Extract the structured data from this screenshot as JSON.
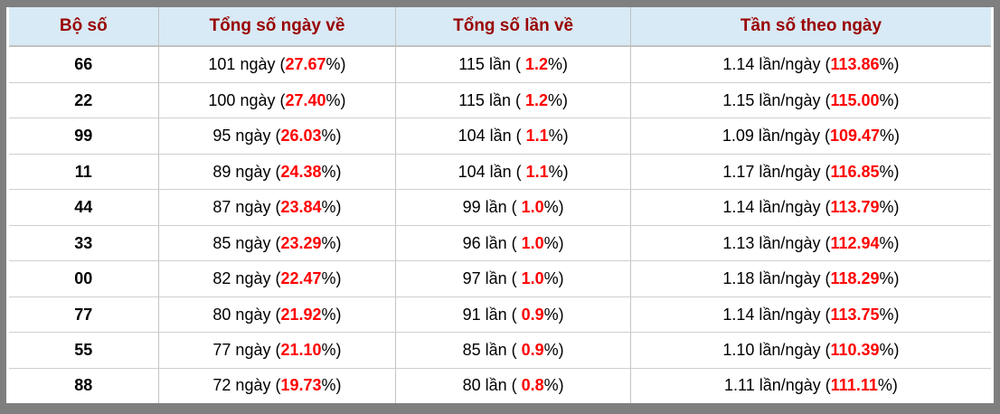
{
  "colors": {
    "frame": "#7f7f7f",
    "header_bg": "#d8eaf5",
    "header_text": "#990000",
    "body_text": "#000000",
    "highlight_red": "#ff0000",
    "grid_line": "#c3c3c3"
  },
  "table": {
    "headers": [
      "Bộ số",
      "Tổng số ngày về",
      "Tổng số lần về",
      "Tần số theo ngày"
    ],
    "rows": [
      {
        "num": "66",
        "days": {
          "pre": "101 ngày (",
          "red": "27.67",
          "suf": "%)"
        },
        "times": {
          "pre": "115 lần ( ",
          "red": "1.2",
          "suf": "%)"
        },
        "freq": {
          "pre": "1.14 lần/ngày (",
          "red": "113.86",
          "suf": "%)"
        }
      },
      {
        "num": "22",
        "days": {
          "pre": "100 ngày (",
          "red": "27.40",
          "suf": "%)"
        },
        "times": {
          "pre": "115 lần ( ",
          "red": "1.2",
          "suf": "%)"
        },
        "freq": {
          "pre": "1.15 lần/ngày (",
          "red": "115.00",
          "suf": "%)"
        }
      },
      {
        "num": "99",
        "days": {
          "pre": "95 ngày (",
          "red": "26.03",
          "suf": "%)"
        },
        "times": {
          "pre": "104 lần ( ",
          "red": "1.1",
          "suf": "%)"
        },
        "freq": {
          "pre": "1.09 lần/ngày (",
          "red": "109.47",
          "suf": "%)"
        }
      },
      {
        "num": "11",
        "days": {
          "pre": "89 ngày (",
          "red": "24.38",
          "suf": "%)"
        },
        "times": {
          "pre": "104 lần ( ",
          "red": "1.1",
          "suf": "%)"
        },
        "freq": {
          "pre": "1.17 lần/ngày (",
          "red": "116.85",
          "suf": "%)"
        }
      },
      {
        "num": "44",
        "days": {
          "pre": "87 ngày (",
          "red": "23.84",
          "suf": "%)"
        },
        "times": {
          "pre": "99 lần ( ",
          "red": "1.0",
          "suf": "%)"
        },
        "freq": {
          "pre": "1.14 lần/ngày (",
          "red": "113.79",
          "suf": "%)"
        }
      },
      {
        "num": "33",
        "days": {
          "pre": "85 ngày (",
          "red": "23.29",
          "suf": "%)"
        },
        "times": {
          "pre": "96 lần ( ",
          "red": "1.0",
          "suf": "%)"
        },
        "freq": {
          "pre": "1.13 lần/ngày (",
          "red": "112.94",
          "suf": "%)"
        }
      },
      {
        "num": "00",
        "days": {
          "pre": "82 ngày (",
          "red": "22.47",
          "suf": "%)"
        },
        "times": {
          "pre": "97 lần ( ",
          "red": "1.0",
          "suf": "%)"
        },
        "freq": {
          "pre": "1.18 lần/ngày (",
          "red": "118.29",
          "suf": "%)"
        }
      },
      {
        "num": "77",
        "days": {
          "pre": "80 ngày (",
          "red": "21.92",
          "suf": "%)"
        },
        "times": {
          "pre": "91 lần ( ",
          "red": "0.9",
          "suf": "%)"
        },
        "freq": {
          "pre": "1.14 lần/ngày (",
          "red": "113.75",
          "suf": "%)"
        }
      },
      {
        "num": "55",
        "days": {
          "pre": "77 ngày (",
          "red": "21.10",
          "suf": "%)"
        },
        "times": {
          "pre": "85 lần ( ",
          "red": "0.9",
          "suf": "%)"
        },
        "freq": {
          "pre": "1.10 lần/ngày (",
          "red": "110.39",
          "suf": "%)"
        }
      },
      {
        "num": "88",
        "days": {
          "pre": "72 ngày (",
          "red": "19.73",
          "suf": "%)"
        },
        "times": {
          "pre": "80 lần ( ",
          "red": "0.8",
          "suf": "%)"
        },
        "freq": {
          "pre": "1.11 lần/ngày (",
          "red": "111.11",
          "suf": "%)"
        }
      }
    ]
  },
  "chart_data": {
    "type": "table",
    "columns": [
      "Bộ số",
      "Tổng số ngày về",
      "Tổng số lần về",
      "Tần số theo ngày"
    ],
    "rows": [
      [
        "66",
        "101 ngày (27.67%)",
        "115 lần ( 1.2%)",
        "1.14 lần/ngày (113.86%)"
      ],
      [
        "22",
        "100 ngày (27.40%)",
        "115 lần ( 1.2%)",
        "1.15 lần/ngày (115.00%)"
      ],
      [
        "99",
        "95 ngày (26.03%)",
        "104 lần ( 1.1%)",
        "1.09 lần/ngày (109.47%)"
      ],
      [
        "11",
        "89 ngày (24.38%)",
        "104 lần ( 1.1%)",
        "1.17 lần/ngày (116.85%)"
      ],
      [
        "44",
        "87 ngày (23.84%)",
        "99 lần ( 1.0%)",
        "1.14 lần/ngày (113.79%)"
      ],
      [
        "33",
        "85 ngày (23.29%)",
        "96 lần ( 1.0%)",
        "1.13 lần/ngày (112.94%)"
      ],
      [
        "00",
        "82 ngày (22.47%)",
        "97 lần ( 1.0%)",
        "1.18 lần/ngày (118.29%)"
      ],
      [
        "77",
        "80 ngày (21.92%)",
        "91 lần ( 0.9%)",
        "1.14 lần/ngày (113.75%)"
      ],
      [
        "55",
        "77 ngày (21.10%)",
        "85 lần ( 0.9%)",
        "1.10 lần/ngày (110.39%)"
      ],
      [
        "88",
        "72 ngày (19.73%)",
        "80 lần ( 0.8%)",
        "1.11 lần/ngày (111.11%)"
      ]
    ]
  }
}
